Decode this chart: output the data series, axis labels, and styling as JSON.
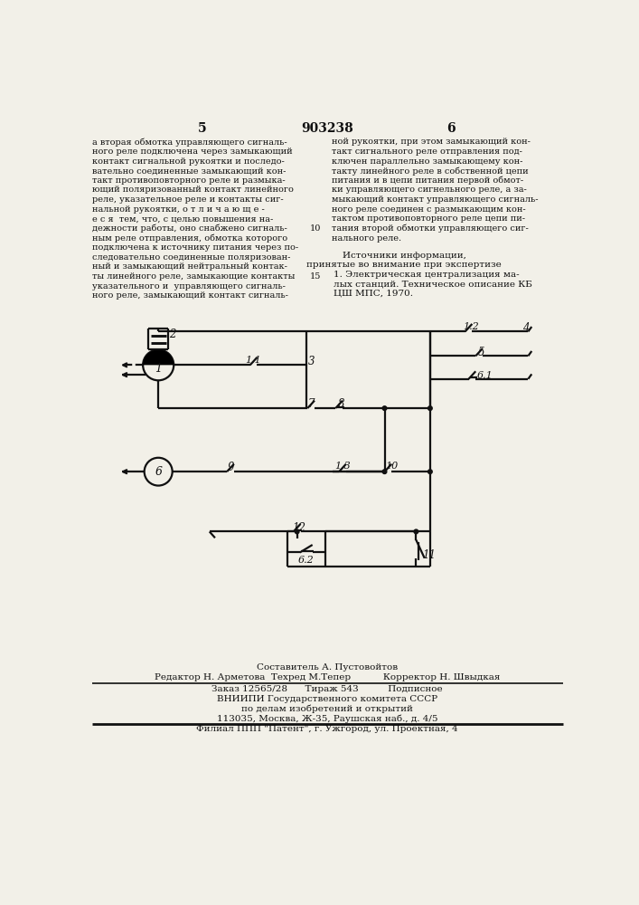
{
  "bg_color": "#f2f0e8",
  "lc": "#111111",
  "lw": 1.6,
  "page_num_left": "5",
  "patent_num": "903238",
  "page_num_right": "6",
  "text_left_col": [
    "а вторая обмотка управляющего сигналь-",
    "ного реле подключена через замыкающий",
    "контакт сигнальной рукоятки и последо-",
    "вательно соединенные замыкающий кон-",
    "такт противоповторного реле и размыка-",
    "ющий поляризованный контакт линейного",
    "реле, указательное реле и контакты сиг-",
    "нальной рукоятки, о т л и ч а ю щ е -",
    "е с я  тем, что, с целью повышения на-",
    "дежности работы, оно снабжено сигналь-",
    "ным реле отправления, обмотка которого",
    "подключена к источнику питания через по-",
    "следовательно соединенные поляризован-",
    "ный и замыкающий нейтральный контак-",
    "ты линейного реле, замыкающие контакты",
    "указательного и  управляющего сигналь-",
    "ного реле, замыкающий контакт сигналь-"
  ],
  "text_right_col": [
    "ной рукоятки, при этом замыкающий кон-",
    "такт сигнального реле отправления под-",
    "ключен параллельно замыкающему кон-",
    "такту линейного реле в собственной цепи",
    "питания и в цепи питания первой обмот-",
    "ки управляющего сигнельного реле, а за-",
    "мыкающий контакт управляющего сигналь-",
    "ного реле соединен с размыкающим кон-",
    "тактом противоповторного реле цепи пи-",
    "тания второй обмотки управляющего сиг-",
    "нального реле."
  ],
  "sources_header": "Источники информации,",
  "sources_subheader": "принятые во внимание при экспертизе",
  "sources_body": [
    "1. Электрическая централизация ма-",
    "лых станций. Техническое описание КБ",
    "ЦШ МПС, 1970."
  ],
  "footer_line1": "Составитель А. Пустовойтов",
  "footer_line2": "Редактор Н. Арметова  Техред М.Тепер           Корректор Н. Швыдкая",
  "footer_line3": "Заказ 12565/28      Тираж 543          Подписное",
  "footer_line4": "ВНИИПИ Государственного комитета СССР",
  "footer_line5": "по делам изобретений и открытий",
  "footer_line6": "113035, Москва, Ж-35, Раушская наб., д. 4/5",
  "footer_line7": "Филиал ППП \"Патент\", г. Ужгород, ул. Проектная, 4"
}
